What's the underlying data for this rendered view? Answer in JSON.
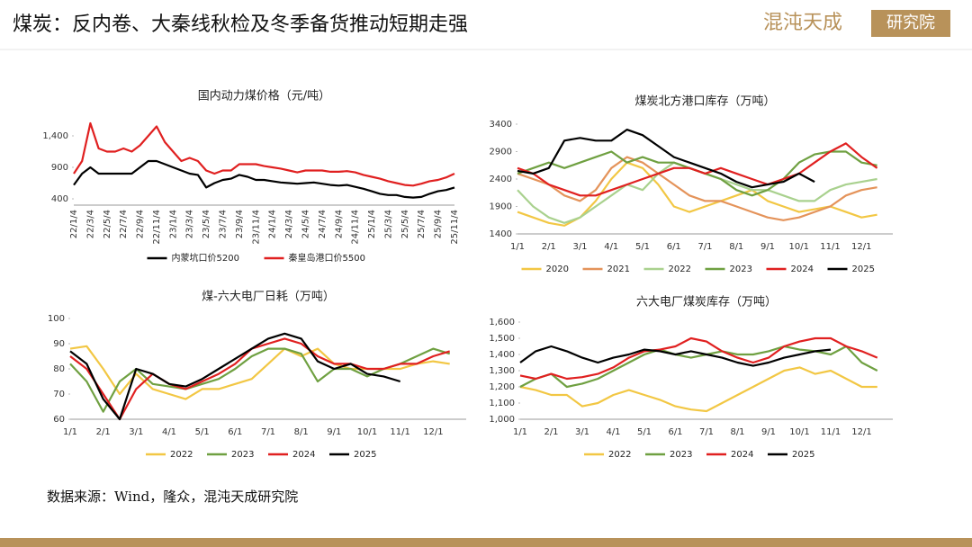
{
  "header": {
    "title": "煤炭：反内卷、大秦线秋检及冬季备货推动短期走强",
    "logo": "混沌天成",
    "logo_box": "研究院"
  },
  "source": "数据来源：Wind，隆众，混沌天成研究院",
  "chart_data": [
    {
      "type": "line",
      "title": "国内动力煤价格（元/吨）",
      "categories": [
        "22/1/4",
        null,
        "22/3/4",
        null,
        "22/5/4",
        null,
        "22/7/4",
        null,
        "22/9/4",
        null,
        "22/11/4",
        null,
        "23/1/4",
        null,
        "23/3/4",
        null,
        "23/5/4",
        null,
        "23/7/4",
        null,
        "23/9/4",
        null,
        "23/11/4",
        null,
        "24/1/4",
        null,
        "24/3/4",
        null,
        "24/5/4",
        null,
        "24/7/4",
        null,
        "24/9/4",
        null,
        "24/11/4",
        null,
        "25/1/4",
        null,
        "25/3/4",
        null,
        "25/5/4",
        null,
        "25/7/4",
        null,
        "25/9/4",
        null,
        "25/11/4"
      ],
      "ylim": [
        300,
        1700
      ],
      "yticks": [
        400,
        900,
        {
          "value": 1400,
          "label": "1,400"
        }
      ],
      "grid": false,
      "legend": "bottom",
      "series": [
        {
          "name": "内蒙坑口价5200",
          "color": "#000000",
          "values": [
            620,
            800,
            900,
            800,
            800,
            800,
            800,
            800,
            900,
            1000,
            1000,
            950,
            900,
            850,
            800,
            780,
            580,
            650,
            700,
            720,
            780,
            750,
            700,
            700,
            680,
            660,
            650,
            640,
            650,
            660,
            640,
            620,
            610,
            620,
            590,
            560,
            520,
            480,
            460,
            460,
            430,
            420,
            430,
            480,
            520,
            540,
            580
          ]
        },
        {
          "name": "秦皇岛港口价5500",
          "color": "#e02020",
          "values": [
            800,
            1000,
            1600,
            1200,
            1150,
            1150,
            1200,
            1150,
            1250,
            1400,
            1550,
            1300,
            1150,
            1000,
            1050,
            1000,
            850,
            800,
            850,
            850,
            950,
            950,
            950,
            920,
            900,
            880,
            850,
            820,
            850,
            850,
            850,
            830,
            830,
            840,
            820,
            780,
            750,
            720,
            680,
            650,
            620,
            610,
            640,
            680,
            700,
            740,
            800
          ]
        }
      ]
    },
    {
      "type": "line",
      "title": "煤炭北方港口库存（万吨）",
      "categories": [
        "1/1",
        null,
        "2/1",
        null,
        "3/1",
        null,
        "4/1",
        null,
        "5/1",
        null,
        "6/1",
        null,
        "7/1",
        null,
        "8/1",
        null,
        "9/1",
        null,
        "10/1",
        null,
        "11/1",
        null,
        "12/1",
        null
      ],
      "ylim": [
        1400,
        3400
      ],
      "yticks": [
        1400,
        1900,
        2400,
        2900,
        3400
      ],
      "grid": false,
      "legend": "bottom",
      "series": [
        {
          "name": "2020",
          "color": "#f2c744",
          "values": [
            1800,
            1700,
            1600,
            1550,
            1700,
            2000,
            2400,
            2700,
            2600,
            2300,
            1900,
            1800,
            1900,
            2000,
            2100,
            2200,
            2000,
            1900,
            1800,
            1850,
            1900,
            1800,
            1700,
            1750
          ]
        },
        {
          "name": "2021",
          "color": "#e4935a",
          "values": [
            2500,
            2400,
            2300,
            2100,
            2000,
            2200,
            2600,
            2800,
            2700,
            2500,
            2300,
            2100,
            2000,
            2000,
            1900,
            1800,
            1700,
            1650,
            1700,
            1800,
            1900,
            2100,
            2200,
            2250
          ]
        },
        {
          "name": "2022",
          "color": "#a9d18e",
          "values": [
            2200,
            1900,
            1700,
            1600,
            1700,
            1900,
            2100,
            2300,
            2200,
            2500,
            2700,
            2600,
            2500,
            2400,
            2300,
            2200,
            2200,
            2100,
            2000,
            2000,
            2200,
            2300,
            2350,
            2400
          ]
        },
        {
          "name": "2023",
          "color": "#6fa041",
          "values": [
            2500,
            2600,
            2700,
            2600,
            2700,
            2800,
            2900,
            2700,
            2800,
            2700,
            2700,
            2600,
            2500,
            2400,
            2200,
            2100,
            2200,
            2400,
            2700,
            2850,
            2900,
            2900,
            2700,
            2650
          ]
        },
        {
          "name": "2024",
          "color": "#e02020",
          "values": [
            2600,
            2500,
            2300,
            2200,
            2100,
            2100,
            2200,
            2300,
            2400,
            2500,
            2600,
            2600,
            2500,
            2600,
            2500,
            2400,
            2300,
            2400,
            2500,
            2700,
            2900,
            3050,
            2800,
            2600
          ]
        },
        {
          "name": "2025",
          "color": "#000000",
          "values": [
            2550,
            2500,
            2600,
            3100,
            3150,
            3100,
            3100,
            3300,
            3200,
            3000,
            2800,
            2700,
            2600,
            2500,
            2350,
            2250,
            2300,
            2350,
            2500,
            2350,
            null,
            null,
            null,
            null
          ]
        }
      ]
    },
    {
      "type": "line",
      "title": "煤-六大电厂日耗（万吨）",
      "categories": [
        "1/1",
        null,
        "2/1",
        null,
        "3/1",
        null,
        "4/1",
        null,
        "5/1",
        null,
        "6/1",
        null,
        "7/1",
        null,
        "8/1",
        null,
        "9/1",
        null,
        "10/1",
        null,
        "11/1",
        null,
        "12/1",
        null
      ],
      "ylim": [
        60,
        100
      ],
      "yticks": [
        60,
        70,
        80,
        90,
        100
      ],
      "grid": false,
      "legend": "bottom",
      "series": [
        {
          "name": "2022",
          "color": "#f2c744",
          "values": [
            88,
            89,
            80,
            70,
            78,
            72,
            70,
            68,
            72,
            72,
            74,
            76,
            82,
            88,
            85,
            88,
            82,
            80,
            80,
            80,
            80,
            82,
            83,
            82
          ]
        },
        {
          "name": "2023",
          "color": "#6fa041",
          "values": [
            82,
            75,
            63,
            75,
            80,
            74,
            73,
            72,
            74,
            76,
            80,
            85,
            88,
            88,
            86,
            75,
            80,
            80,
            77,
            80,
            82,
            85,
            88,
            86
          ]
        },
        {
          "name": "2024",
          "color": "#e02020",
          "values": [
            85,
            80,
            70,
            60,
            72,
            78,
            74,
            72,
            75,
            78,
            82,
            88,
            90,
            92,
            90,
            85,
            82,
            82,
            80,
            80,
            82,
            82,
            85,
            87
          ]
        },
        {
          "name": "2025",
          "color": "#000000",
          "values": [
            87,
            82,
            68,
            60,
            80,
            78,
            74,
            73,
            76,
            80,
            84,
            88,
            92,
            94,
            92,
            83,
            80,
            82,
            78,
            77,
            75,
            null,
            null,
            null
          ]
        }
      ]
    },
    {
      "type": "line",
      "title": "六大电厂煤炭库存（万吨）",
      "categories": [
        "1/1",
        null,
        "2/1",
        null,
        "3/1",
        null,
        "4/1",
        null,
        "5/1",
        null,
        "6/1",
        null,
        "7/1",
        null,
        "8/1",
        null,
        "9/1",
        null,
        "10/1",
        null,
        "11/1",
        null,
        "12/1",
        null
      ],
      "ylim": [
        1000,
        1600
      ],
      "yticks": [
        {
          "value": 1000,
          "label": "1,000"
        },
        {
          "value": 1100,
          "label": "1,100"
        },
        {
          "value": 1200,
          "label": "1,200"
        },
        {
          "value": 1300,
          "label": "1,300"
        },
        {
          "value": 1400,
          "label": "1,400"
        },
        {
          "value": 1500,
          "label": "1,500"
        },
        {
          "value": 1600,
          "label": "1,600"
        }
      ],
      "grid": false,
      "legend": "bottom",
      "series": [
        {
          "name": "2022",
          "color": "#f2c744",
          "values": [
            1200,
            1180,
            1150,
            1150,
            1080,
            1100,
            1150,
            1180,
            1150,
            1120,
            1080,
            1060,
            1050,
            1100,
            1150,
            1200,
            1250,
            1300,
            1320,
            1280,
            1300,
            1250,
            1200,
            1200
          ]
        },
        {
          "name": "2023",
          "color": "#6fa041",
          "values": [
            1200,
            1250,
            1280,
            1200,
            1220,
            1250,
            1300,
            1350,
            1400,
            1430,
            1400,
            1380,
            1400,
            1420,
            1400,
            1400,
            1420,
            1450,
            1430,
            1420,
            1400,
            1450,
            1350,
            1300
          ]
        },
        {
          "name": "2024",
          "color": "#e02020",
          "values": [
            1270,
            1250,
            1280,
            1250,
            1260,
            1280,
            1320,
            1380,
            1420,
            1430,
            1450,
            1500,
            1480,
            1420,
            1380,
            1350,
            1380,
            1450,
            1480,
            1500,
            1500,
            1450,
            1420,
            1380
          ]
        },
        {
          "name": "2025",
          "color": "#000000",
          "values": [
            1350,
            1420,
            1450,
            1420,
            1380,
            1350,
            1380,
            1400,
            1430,
            1420,
            1400,
            1420,
            1400,
            1380,
            1350,
            1330,
            1350,
            1380,
            1400,
            1420,
            1430,
            null,
            null,
            null
          ]
        }
      ]
    }
  ]
}
